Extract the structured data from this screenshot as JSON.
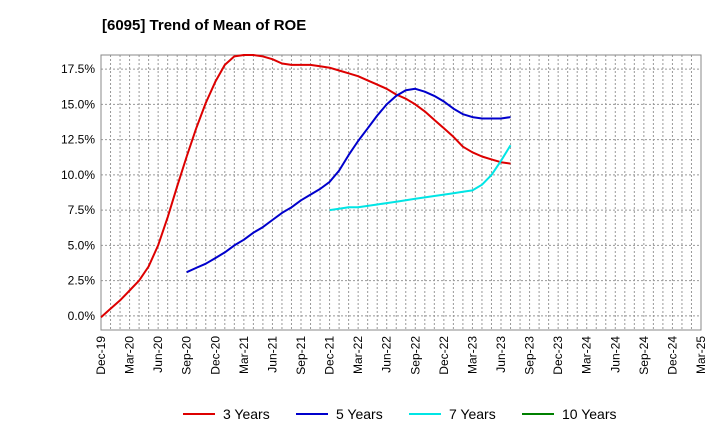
{
  "chart_data": {
    "type": "line",
    "title": "[6095]  Trend of Mean of ROE",
    "xlabel": "",
    "ylabel": "",
    "ylim": [
      -0.01,
      0.185
    ],
    "y_ticks": [
      "0.0%",
      "2.5%",
      "5.0%",
      "7.5%",
      "10.0%",
      "12.5%",
      "15.0%",
      "17.5%"
    ],
    "x_ticks": [
      "Dec-19",
      "Mar-20",
      "Jun-20",
      "Sep-20",
      "Dec-20",
      "Mar-21",
      "Jun-21",
      "Sep-21",
      "Dec-21",
      "Mar-22",
      "Jun-22",
      "Sep-22",
      "Dec-22",
      "Mar-23",
      "Jun-23",
      "Sep-23",
      "Dec-23",
      "Mar-24",
      "Jun-24",
      "Sep-24",
      "Dec-24",
      "Mar-25"
    ],
    "grid": true,
    "legend_position": "bottom",
    "series": [
      {
        "name": "3 Years",
        "color": "#dd0000",
        "points": [
          [
            0,
            -0.001
          ],
          [
            1,
            0.005
          ],
          [
            2,
            0.011
          ],
          [
            3,
            0.018
          ],
          [
            4,
            0.025
          ],
          [
            5,
            0.035
          ],
          [
            6,
            0.05
          ],
          [
            7,
            0.07
          ],
          [
            8,
            0.092
          ],
          [
            9,
            0.113
          ],
          [
            10,
            0.133
          ],
          [
            11,
            0.151
          ],
          [
            12,
            0.166
          ],
          [
            13,
            0.178
          ],
          [
            14,
            0.184
          ],
          [
            15,
            0.185
          ],
          [
            16,
            0.185
          ],
          [
            17,
            0.184
          ],
          [
            18,
            0.182
          ],
          [
            19,
            0.179
          ],
          [
            20,
            0.178
          ],
          [
            21,
            0.178
          ],
          [
            22,
            0.178
          ],
          [
            23,
            0.177
          ],
          [
            24,
            0.176
          ],
          [
            25,
            0.174
          ],
          [
            26,
            0.172
          ],
          [
            27,
            0.17
          ],
          [
            28,
            0.167
          ],
          [
            29,
            0.164
          ],
          [
            30,
            0.161
          ],
          [
            31,
            0.157
          ],
          [
            32,
            0.154
          ],
          [
            33,
            0.15
          ],
          [
            34,
            0.145
          ],
          [
            35,
            0.139
          ],
          [
            36,
            0.133
          ],
          [
            37,
            0.127
          ],
          [
            38,
            0.12
          ],
          [
            39,
            0.116
          ],
          [
            40,
            0.113
          ],
          [
            41,
            0.111
          ],
          [
            42,
            0.109
          ],
          [
            43,
            0.108
          ]
        ]
      },
      {
        "name": "5 Years",
        "color": "#0000cc",
        "points": [
          [
            9,
            0.031
          ],
          [
            10,
            0.034
          ],
          [
            11,
            0.037
          ],
          [
            12,
            0.041
          ],
          [
            13,
            0.045
          ],
          [
            14,
            0.05
          ],
          [
            15,
            0.054
          ],
          [
            16,
            0.059
          ],
          [
            17,
            0.063
          ],
          [
            18,
            0.068
          ],
          [
            19,
            0.073
          ],
          [
            20,
            0.077
          ],
          [
            21,
            0.082
          ],
          [
            22,
            0.086
          ],
          [
            23,
            0.09
          ],
          [
            24,
            0.095
          ],
          [
            25,
            0.103
          ],
          [
            26,
            0.114
          ],
          [
            27,
            0.124
          ],
          [
            28,
            0.133
          ],
          [
            29,
            0.142
          ],
          [
            30,
            0.15
          ],
          [
            31,
            0.156
          ],
          [
            32,
            0.16
          ],
          [
            33,
            0.161
          ],
          [
            34,
            0.159
          ],
          [
            35,
            0.156
          ],
          [
            36,
            0.152
          ],
          [
            37,
            0.147
          ],
          [
            38,
            0.143
          ],
          [
            39,
            0.141
          ],
          [
            40,
            0.14
          ],
          [
            41,
            0.14
          ],
          [
            42,
            0.14
          ],
          [
            43,
            0.141
          ]
        ]
      },
      {
        "name": "7 Years",
        "color": "#00e5e5",
        "points": [
          [
            24,
            0.075
          ],
          [
            25,
            0.076
          ],
          [
            26,
            0.077
          ],
          [
            27,
            0.077
          ],
          [
            28,
            0.078
          ],
          [
            29,
            0.079
          ],
          [
            30,
            0.08
          ],
          [
            31,
            0.081
          ],
          [
            32,
            0.082
          ],
          [
            33,
            0.083
          ],
          [
            34,
            0.084
          ],
          [
            35,
            0.085
          ],
          [
            36,
            0.086
          ],
          [
            37,
            0.087
          ],
          [
            38,
            0.088
          ],
          [
            39,
            0.089
          ],
          [
            40,
            0.093
          ],
          [
            41,
            0.1
          ],
          [
            42,
            0.11
          ],
          [
            43,
            0.121
          ]
        ]
      },
      {
        "name": "10 Years",
        "color": "#008000",
        "points": []
      }
    ]
  }
}
